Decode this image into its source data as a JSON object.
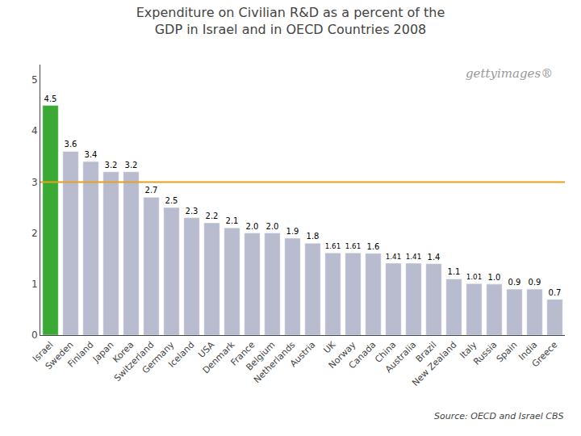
{
  "chart_data": {
    "type": "bar",
    "title": "Expenditure on Civilian R&D as a percent of the\nGDP in Israel and in OECD Countries 2008",
    "categories": [
      "Israel",
      "Sweden",
      "Finland",
      "Japan",
      "Korea",
      "Switzerland",
      "Germany",
      "Iceland",
      "USA",
      "Denmark",
      "France",
      "Belgium",
      "Netherlands",
      "Austria",
      "UK",
      "Norway",
      "Canada",
      "China",
      "Australia",
      "Brazil",
      "New Zealand",
      "Italy",
      "Russia",
      "Spain",
      "India",
      "Greece"
    ],
    "values": [
      4.5,
      3.6,
      3.4,
      3.2,
      3.2,
      2.7,
      2.5,
      2.3,
      2.2,
      2.1,
      2.0,
      2.0,
      1.9,
      1.8,
      1.61,
      1.61,
      1.6,
      1.41,
      1.41,
      1.4,
      1.1,
      1.01,
      1.0,
      0.9,
      0.9,
      0.7
    ],
    "value_labels": [
      "4.5",
      "3.6",
      "3.4",
      "3.2",
      "3.2",
      "2.7",
      "2.5",
      "2.3",
      "2.2",
      "2.1",
      "2.0",
      "2.0",
      "1.9",
      "1.8",
      "1.61",
      "1.61",
      "1.6",
      "1.41",
      "1.41",
      "1.4",
      "1.1",
      "1.01",
      "1.0",
      "0.9",
      "0.9",
      "0.7"
    ],
    "colors": [
      "#3aaa35",
      "#b8bcce",
      "#b8bcce",
      "#b8bcce",
      "#b8bcce",
      "#b8bcce",
      "#b8bcce",
      "#b8bcce",
      "#b8bcce",
      "#b8bcce",
      "#b8bcce",
      "#b8bcce",
      "#b8bcce",
      "#b8bcce",
      "#b8bcce",
      "#b8bcce",
      "#b8bcce",
      "#b8bcce",
      "#b8bcce",
      "#b8bcce",
      "#b8bcce",
      "#b8bcce",
      "#b8bcce",
      "#b8bcce",
      "#b8bcce",
      "#b8bcce"
    ],
    "data_labels": true,
    "reference_lines": [
      {
        "value": 3.0,
        "color": "#e8a020"
      }
    ],
    "ylim": [
      0,
      5.3
    ],
    "yticks": [
      0,
      1,
      2,
      3,
      4,
      5
    ],
    "grid": false,
    "annotations": [
      "Source: OECD and Israel CBS",
      "gettyimages®"
    ]
  }
}
